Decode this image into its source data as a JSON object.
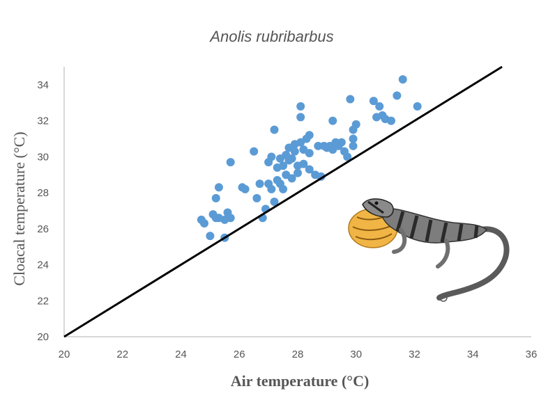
{
  "chart_data": {
    "type": "scatter",
    "title": "Anolis rubribarbus",
    "xlabel": "Air temperature (°C)",
    "ylabel": "Cloacal temperature (°C)",
    "xlim": [
      20,
      36
    ],
    "ylim": [
      20,
      35
    ],
    "xticks": [
      "20",
      "22",
      "24",
      "26",
      "28",
      "30",
      "32",
      "34",
      "36"
    ],
    "yticks": [
      "20",
      "22",
      "24",
      "26",
      "28",
      "30",
      "32",
      "34"
    ],
    "grid": false,
    "legend": "none",
    "colors": {
      "points": "#5b9bd5",
      "line": "#000000",
      "text": "#555555"
    },
    "reference_line": {
      "x": [
        20,
        35
      ],
      "y": [
        20,
        35
      ]
    },
    "illustration": "lizard-with-extended-dewlap",
    "series": [
      {
        "points": [
          [
            24.7,
            26.5
          ],
          [
            24.8,
            26.3
          ],
          [
            25.0,
            25.6
          ],
          [
            25.1,
            26.8
          ],
          [
            25.2,
            26.6
          ],
          [
            25.2,
            27.7
          ],
          [
            25.3,
            28.3
          ],
          [
            25.3,
            26.6
          ],
          [
            25.5,
            25.5
          ],
          [
            25.5,
            26.5
          ],
          [
            25.6,
            26.9
          ],
          [
            25.7,
            26.6
          ],
          [
            25.7,
            29.7
          ],
          [
            26.1,
            28.3
          ],
          [
            26.2,
            28.2
          ],
          [
            26.5,
            30.3
          ],
          [
            26.6,
            27.7
          ],
          [
            26.7,
            28.5
          ],
          [
            26.8,
            26.6
          ],
          [
            26.9,
            27.1
          ],
          [
            27.0,
            28.5
          ],
          [
            27.0,
            29.7
          ],
          [
            27.1,
            28.2
          ],
          [
            27.1,
            30.0
          ],
          [
            27.2,
            31.5
          ],
          [
            27.2,
            27.5
          ],
          [
            27.3,
            28.7
          ],
          [
            27.3,
            29.4
          ],
          [
            27.4,
            29.9
          ],
          [
            27.4,
            28.5
          ],
          [
            27.5,
            29.5
          ],
          [
            27.5,
            28.2
          ],
          [
            27.6,
            30.1
          ],
          [
            27.6,
            29.0
          ],
          [
            27.7,
            30.5
          ],
          [
            27.7,
            29.8
          ],
          [
            27.8,
            28.8
          ],
          [
            27.8,
            29.9
          ],
          [
            27.9,
            30.7
          ],
          [
            27.9,
            30.3
          ],
          [
            28.0,
            29.5
          ],
          [
            28.0,
            29.1
          ],
          [
            28.1,
            30.8
          ],
          [
            28.1,
            32.8
          ],
          [
            28.1,
            32.2
          ],
          [
            28.2,
            30.4
          ],
          [
            28.2,
            29.6
          ],
          [
            28.3,
            31.0
          ],
          [
            28.4,
            30.2
          ],
          [
            28.4,
            29.3
          ],
          [
            28.4,
            31.2
          ],
          [
            28.6,
            29.0
          ],
          [
            28.7,
            30.6
          ],
          [
            28.8,
            28.9
          ],
          [
            28.9,
            30.6
          ],
          [
            29.0,
            30.5
          ],
          [
            29.1,
            30.6
          ],
          [
            29.2,
            32.0
          ],
          [
            29.2,
            30.4
          ],
          [
            29.3,
            30.8
          ],
          [
            29.4,
            30.6
          ],
          [
            29.5,
            30.8
          ],
          [
            29.6,
            30.3
          ],
          [
            29.7,
            30.0
          ],
          [
            29.8,
            33.2
          ],
          [
            29.9,
            31.5
          ],
          [
            29.9,
            31.0
          ],
          [
            29.9,
            30.6
          ],
          [
            30.0,
            31.8
          ],
          [
            30.6,
            33.1
          ],
          [
            30.7,
            32.2
          ],
          [
            30.8,
            32.8
          ],
          [
            30.9,
            32.3
          ],
          [
            31.0,
            32.1
          ],
          [
            31.2,
            32.0
          ],
          [
            31.4,
            33.4
          ],
          [
            31.6,
            34.3
          ],
          [
            32.1,
            32.8
          ]
        ]
      }
    ]
  }
}
